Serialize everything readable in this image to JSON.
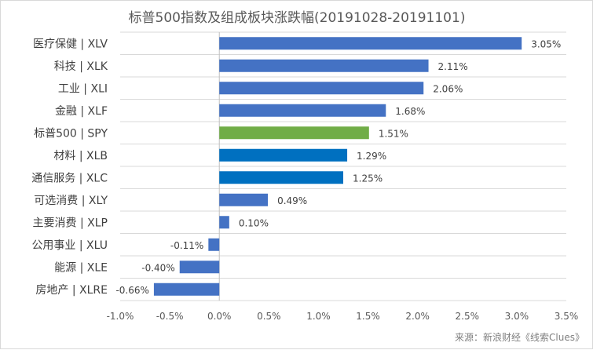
{
  "chart_data": {
    "type": "bar",
    "orientation": "horizontal",
    "title": "标普500指数及组成板块涨跌幅(20191028-20191101)",
    "categories": [
      "医疗保健 | XLV",
      "科技 | XLK",
      "工业 | XLI",
      "金融 | XLF",
      "标普500 | SPY",
      "材料 | XLB",
      "通信服务 | XLC",
      "可选消费 | XLY",
      "主要消费 | XLP",
      "公用事业 | XLU",
      "能源 | XLE",
      "房地产 | XLRE"
    ],
    "values": [
      3.05,
      2.11,
      2.06,
      1.68,
      1.51,
      1.29,
      1.25,
      0.49,
      0.1,
      -0.11,
      -0.4,
      -0.66
    ],
    "value_labels": [
      "3.05%",
      "2.11%",
      "2.06%",
      "1.68%",
      "1.51%",
      "1.29%",
      "1.25%",
      "0.49%",
      "0.10%",
      "-0.11%",
      "-0.40%",
      "-0.66%"
    ],
    "bar_colors": [
      "#4472c4",
      "#4472c4",
      "#4472c4",
      "#4472c4",
      "#70ad47",
      "#0070c0",
      "#0070c0",
      "#4472c4",
      "#4472c4",
      "#4472c4",
      "#4472c4",
      "#4472c4"
    ],
    "xlim": [
      -1.0,
      3.5
    ],
    "x_ticks": [
      -1.0,
      -0.5,
      0.0,
      0.5,
      1.0,
      1.5,
      2.0,
      2.5,
      3.0,
      3.5
    ],
    "x_tick_labels": [
      "-1.0%",
      "-0.5%",
      "0.0%",
      "0.5%",
      "1.0%",
      "1.5%",
      "2.0%",
      "2.5%",
      "3.0%",
      "3.5%"
    ],
    "grid": "horizontal lines",
    "legend": "none",
    "xlabel": "",
    "ylabel": ""
  },
  "source": "来源：新浪财经《线索Clues》"
}
